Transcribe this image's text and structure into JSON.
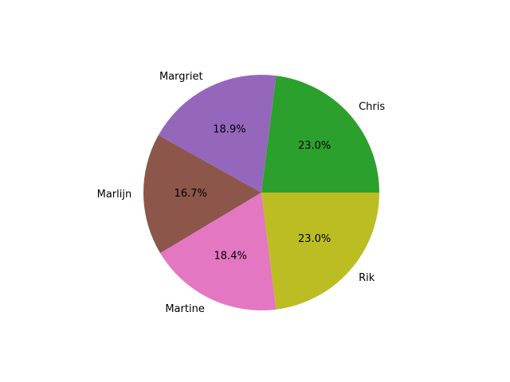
{
  "chart_data": {
    "type": "pie",
    "title": "",
    "start_angle_deg": 0,
    "direction": "counterclockwise",
    "slices": [
      {
        "label": "Chris",
        "value": 23.0,
        "pct_label": "23.0%",
        "color": "#2ca02c"
      },
      {
        "label": "Margriet",
        "value": 18.9,
        "pct_label": "18.9%",
        "color": "#9467bd"
      },
      {
        "label": "Marlijn",
        "value": 16.7,
        "pct_label": "16.7%",
        "color": "#8c564b"
      },
      {
        "label": "Martine",
        "value": 18.4,
        "pct_label": "18.4%",
        "color": "#e377c2"
      },
      {
        "label": "Rik",
        "value": 23.0,
        "pct_label": "23.0%",
        "color": "#bcbd22"
      }
    ]
  }
}
